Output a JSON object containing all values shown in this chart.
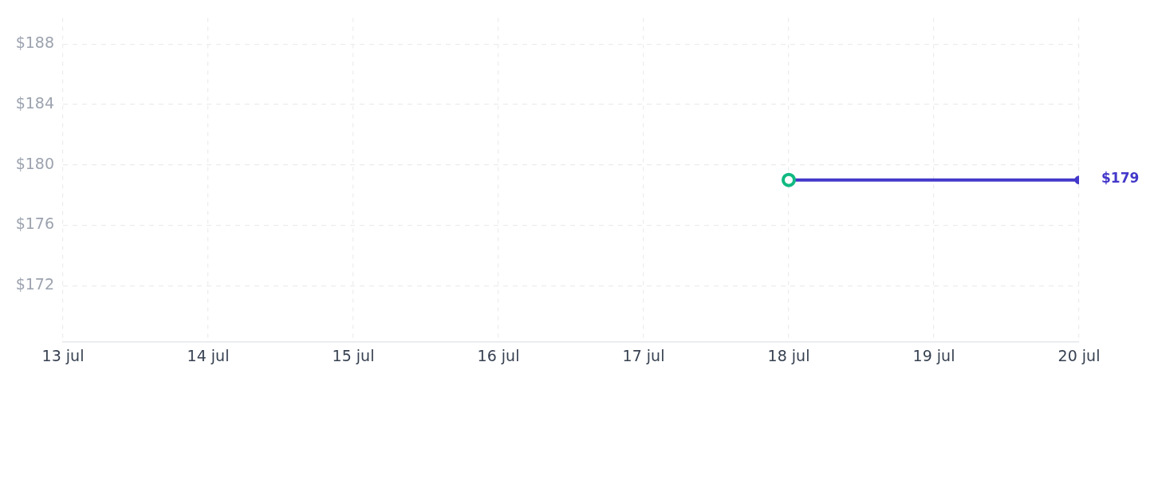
{
  "chart_data": {
    "type": "line",
    "x": [
      "--07-18",
      "--07-20"
    ],
    "xlim": [
      "--07-13",
      "--07-20"
    ],
    "xticks": [
      {
        "value": "--07-13",
        "label": "13 jul"
      },
      {
        "value": "--07-14",
        "label": "14 jul"
      },
      {
        "value": "--07-15",
        "label": "15 jul"
      },
      {
        "value": "--07-16",
        "label": "16 jul"
      },
      {
        "value": "--07-17",
        "label": "17 jul"
      },
      {
        "value": "--07-18",
        "label": "18 jul"
      },
      {
        "value": "--07-19",
        "label": "19 jul"
      },
      {
        "value": "--07-20",
        "label": "20 jul"
      }
    ],
    "ylim": [
      168.26,
      189.74
    ],
    "yticks": [
      {
        "value": 172,
        "label": "$172"
      },
      {
        "value": 176,
        "label": "$176"
      },
      {
        "value": 180,
        "label": "$180"
      },
      {
        "value": 184,
        "label": "$184"
      },
      {
        "value": 188,
        "label": "$188"
      }
    ],
    "series": [
      {
        "color": "#4338ca",
        "colors": [
          "#10b981",
          "#4338ca"
        ],
        "values": [
          179,
          179
        ],
        "value_labels": [
          null,
          "$179"
        ]
      }
    ],
    "grid": true,
    "legend": false,
    "marker": "circle",
    "line_style": "solid"
  }
}
